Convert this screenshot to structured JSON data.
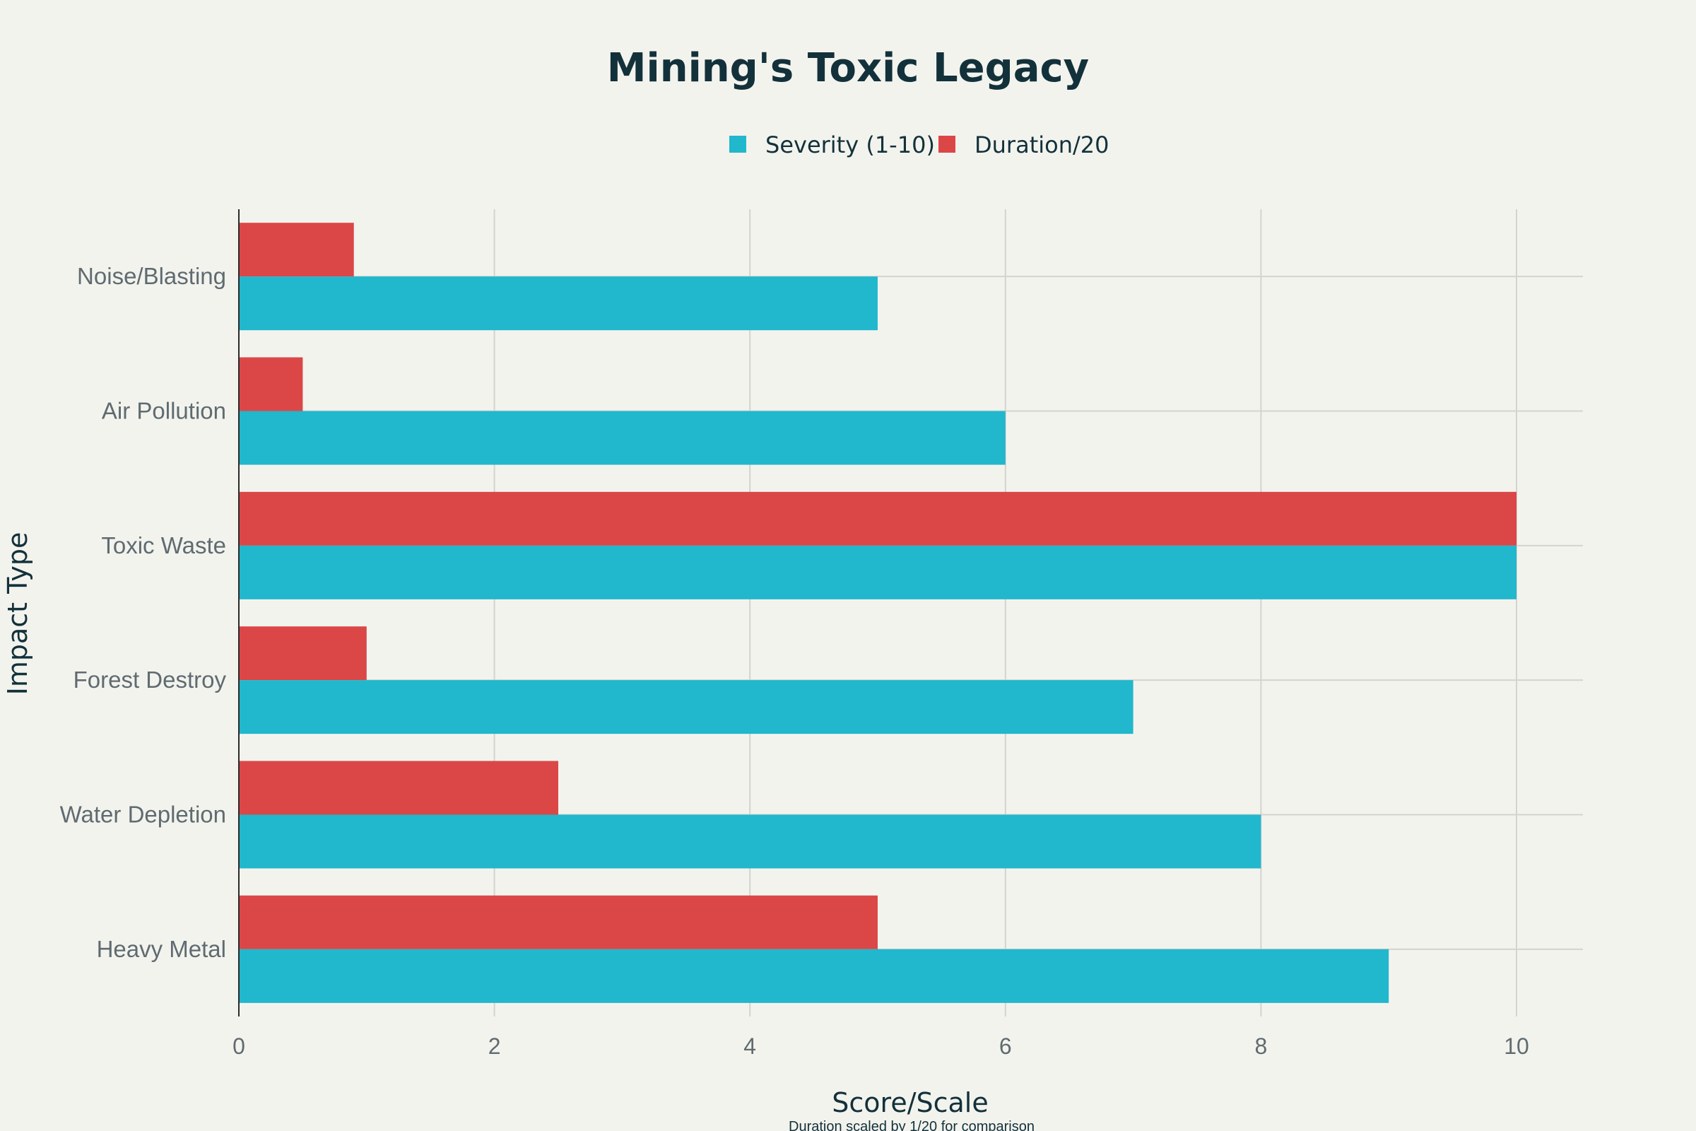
{
  "chart_data": {
    "type": "bar",
    "orientation": "horizontal",
    "title": "Mining's Toxic Legacy",
    "xlabel": "Score/Scale",
    "ylabel": "Impact Type",
    "subtitle": "Duration scaled by 1/20 for comparison",
    "xlim": [
      0,
      10.5
    ],
    "xticks": [
      0,
      2,
      4,
      6,
      8,
      10
    ],
    "xtick_labels": [
      "0",
      "2",
      "4",
      "6",
      "8",
      "10"
    ],
    "grid": true,
    "legend_position": "top-center",
    "categories": [
      "Heavy Metal",
      "Water Depletion",
      "Forest Destroy",
      "Toxic Waste",
      "Air Pollution",
      "Noise/Blasting"
    ],
    "series": [
      {
        "name": "Severity (1-10)",
        "color": "#21b7cc",
        "values": [
          9,
          8,
          7,
          10,
          6,
          5
        ]
      },
      {
        "name": "Duration/20",
        "color": "#db4747",
        "values": [
          5,
          2.5,
          1,
          10,
          0.5,
          0.9
        ]
      }
    ]
  }
}
